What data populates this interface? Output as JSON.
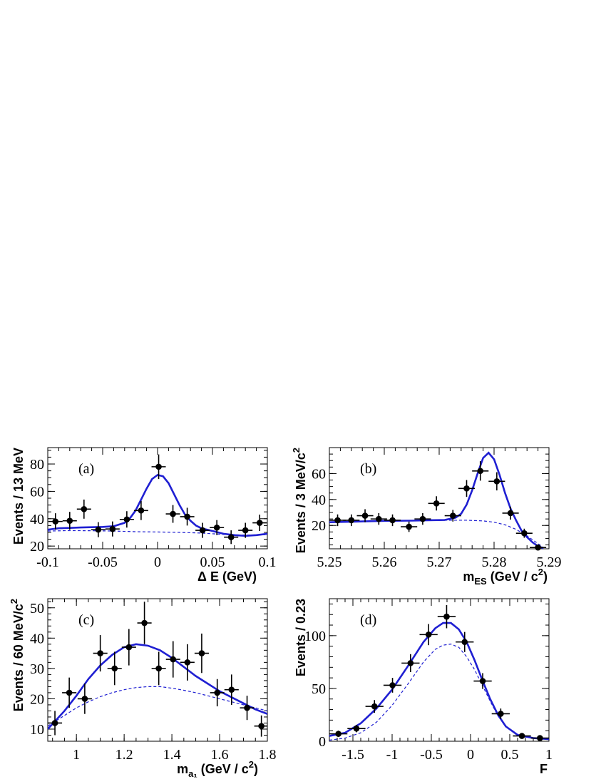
{
  "chart_data": [
    {
      "id": "a",
      "type": "scatter",
      "panel_label": "(a)",
      "xlabel_main": "Δ E (GeV)",
      "xlabel_sub": "",
      "xlabel_tail": "",
      "ylabel_main": "Events / 13 MeV",
      "ylabel_sup": "",
      "xlim": [
        -0.1,
        0.1
      ],
      "ylim": [
        18,
        92
      ],
      "xticks": [
        -0.1,
        -0.05,
        0,
        0.05,
        0.1
      ],
      "xtick_labels": [
        "-0.1",
        "-0.05",
        "0",
        "0.05",
        "0.1"
      ],
      "yticks": [
        20,
        40,
        60,
        80
      ],
      "ytick_labels": [
        "20",
        "40",
        "60",
        "80"
      ],
      "x_minor_step": 0.01,
      "y_minor_step": 5,
      "data": {
        "x": [
          -0.093,
          -0.08,
          -0.067,
          -0.054,
          -0.041,
          -0.028,
          -0.015,
          0.001,
          0.014,
          0.027,
          0.041,
          0.054,
          0.067,
          0.08,
          0.093
        ],
        "y": [
          38,
          38.5,
          47,
          32,
          32.5,
          39.5,
          46,
          78,
          43.5,
          41.5,
          31.5,
          33.5,
          26.5,
          31.5,
          37
        ],
        "yerr": [
          6,
          6.5,
          7,
          5.5,
          5.5,
          6,
          7,
          9,
          6.5,
          6.5,
          5.5,
          5.5,
          5,
          5.5,
          6
        ],
        "xerr": 0.0065
      },
      "series": [
        {
          "name": "",
          "style": "solid",
          "x": [
            -0.1,
            -0.09,
            -0.08,
            -0.07,
            -0.06,
            -0.05,
            -0.04,
            -0.03,
            -0.025,
            -0.02,
            -0.015,
            -0.01,
            -0.005,
            0,
            0.005,
            0.01,
            0.015,
            0.02,
            0.025,
            0.03,
            0.035,
            0.04,
            0.05,
            0.06,
            0.07,
            0.08,
            0.09,
            0.1
          ],
          "y": [
            32,
            33,
            33.3,
            33.6,
            33.8,
            34,
            34.5,
            37,
            40.5,
            46,
            54,
            62,
            69,
            72,
            71,
            66,
            58,
            50,
            43,
            38.5,
            35,
            33,
            31,
            29,
            28,
            27.5,
            28,
            29
          ]
        },
        {
          "name": "",
          "style": "dashed",
          "x": [
            -0.1,
            -0.08,
            -0.06,
            -0.04,
            -0.02,
            0,
            0.02,
            0.04,
            0.06,
            0.08,
            0.1
          ],
          "y": [
            31,
            31.3,
            31.2,
            31,
            30.5,
            30.3,
            30.0,
            29.5,
            28.5,
            28.0,
            28.3
          ]
        }
      ]
    },
    {
      "id": "b",
      "type": "scatter",
      "panel_label": "(b)",
      "xlabel_main": "m",
      "xlabel_sub": "ES",
      "xlabel_tail": " (GeV / c",
      "xlabel_sup": "2",
      "xlabel_end": ")",
      "ylabel_main": "Events / 3 MeV/c",
      "ylabel_sup": "2",
      "xlim": [
        5.25,
        5.29
      ],
      "ylim": [
        2,
        80
      ],
      "xticks": [
        5.25,
        5.26,
        5.27,
        5.28,
        5.29
      ],
      "xtick_labels": [
        "5.25",
        "5.26",
        "5.27",
        "5.28",
        "5.29"
      ],
      "yticks": [
        20,
        40,
        60
      ],
      "ytick_labels": [
        "20",
        "40",
        "60"
      ],
      "x_minor_step": 0.002,
      "y_minor_step": 5,
      "data": {
        "x": [
          5.2515,
          5.254,
          5.2565,
          5.259,
          5.2615,
          5.2645,
          5.267,
          5.2695,
          5.2725,
          5.275,
          5.2775,
          5.2805,
          5.283,
          5.2855,
          5.288
        ],
        "y": [
          24,
          24,
          27.5,
          25,
          24,
          19,
          25,
          37,
          27.5,
          48.5,
          62,
          54,
          29.5,
          14,
          3
        ],
        "yerr": [
          4.5,
          4.5,
          5,
          4.5,
          4.5,
          4,
          4.5,
          5.5,
          4.5,
          6.5,
          7.5,
          7,
          5,
          3.5,
          2
        ],
        "xerr": 0.0015
      },
      "series": [
        {
          "name": "",
          "style": "solid",
          "x": [
            5.25,
            5.255,
            5.26,
            5.265,
            5.268,
            5.271,
            5.273,
            5.274,
            5.275,
            5.276,
            5.277,
            5.278,
            5.279,
            5.28,
            5.281,
            5.282,
            5.283,
            5.284,
            5.285,
            5.286,
            5.287,
            5.288,
            5.289
          ],
          "y": [
            22.5,
            23,
            23.5,
            23.7,
            24,
            24.2,
            26,
            29,
            36,
            47,
            60,
            72,
            76,
            71,
            59,
            45,
            33,
            24,
            16,
            11,
            7,
            4,
            2.5
          ]
        },
        {
          "name": "",
          "style": "dashed",
          "x": [
            5.25,
            5.255,
            5.26,
            5.265,
            5.27,
            5.275,
            5.278,
            5.28,
            5.282,
            5.284,
            5.286,
            5.288,
            5.289
          ],
          "y": [
            22.5,
            23,
            23.5,
            23.8,
            24,
            24,
            23.5,
            22.5,
            20.5,
            17,
            12,
            6,
            3
          ]
        }
      ]
    },
    {
      "id": "c",
      "type": "scatter",
      "panel_label": "(c)",
      "xlabel_main": "m",
      "xlabel_sub": "a₁",
      "xlabel_tail": " (GeV / c",
      "xlabel_sup": "2",
      "xlabel_end": ")",
      "ylabel_main": "Events / 60 MeV/c",
      "ylabel_sup": "2",
      "xlim": [
        0.88,
        1.8
      ],
      "ylim": [
        6,
        53
      ],
      "xticks": [
        1,
        1.2,
        1.4,
        1.6,
        1.8
      ],
      "xtick_labels": [
        "1",
        "1.2",
        "1.4",
        "1.6",
        "1.8"
      ],
      "yticks": [
        10,
        20,
        30,
        40,
        50
      ],
      "ytick_labels": [
        "10",
        "20",
        "30",
        "40",
        "50"
      ],
      "x_minor_step": 0.05,
      "y_minor_step": 2,
      "data": {
        "x": [
          0.91,
          0.97,
          1.035,
          1.1,
          1.16,
          1.22,
          1.285,
          1.345,
          1.405,
          1.465,
          1.525,
          1.59,
          1.65,
          1.715,
          1.775
        ],
        "y": [
          12,
          22,
          20,
          35,
          30,
          37,
          45,
          30,
          33,
          32,
          35,
          22,
          23,
          17,
          11
        ],
        "yerr": [
          4,
          5,
          5,
          6,
          5.5,
          6,
          7,
          5.5,
          6,
          6,
          6.5,
          4.5,
          5,
          4,
          3.5
        ],
        "xerr": 0.03
      },
      "series": [
        {
          "name": "",
          "style": "solid",
          "x": [
            0.88,
            0.95,
            1.0,
            1.05,
            1.1,
            1.15,
            1.2,
            1.25,
            1.3,
            1.35,
            1.4,
            1.45,
            1.5,
            1.55,
            1.6,
            1.65,
            1.7,
            1.75,
            1.8
          ],
          "y": [
            10,
            16,
            21,
            26.5,
            31,
            34.5,
            37,
            38,
            37.5,
            36,
            33.5,
            30.5,
            27.5,
            25,
            22.5,
            20.5,
            18.5,
            16.5,
            15
          ]
        },
        {
          "name": "",
          "style": "dashed",
          "x": [
            0.88,
            0.95,
            1.0,
            1.05,
            1.1,
            1.15,
            1.2,
            1.25,
            1.3,
            1.35,
            1.4,
            1.45,
            1.5,
            1.55,
            1.6,
            1.65,
            1.7,
            1.75,
            1.8
          ],
          "y": [
            11,
            14.5,
            17,
            19,
            20.7,
            22,
            23,
            23.7,
            24,
            24,
            23.5,
            22.8,
            22,
            21,
            20,
            19,
            18,
            17,
            16
          ]
        }
      ]
    },
    {
      "id": "d",
      "type": "scatter",
      "panel_label": "(d)",
      "xlabel_main": "F",
      "xlabel_sub": "",
      "xlabel_tail": "",
      "ylabel_main": "Events / 0.23",
      "ylabel_sup": "",
      "xlim": [
        -1.8,
        1.0
      ],
      "ylim": [
        0,
        135
      ],
      "xticks": [
        -1.5,
        -1,
        -0.5,
        0,
        0.5,
        1
      ],
      "xtick_labels": [
        "-1.5",
        "-1",
        "-0.5",
        "0",
        "0.5",
        "1"
      ],
      "yticks": [
        0,
        50,
        100
      ],
      "ytick_labels": [
        "0",
        "50",
        "100"
      ],
      "x_minor_step": 0.1,
      "y_minor_step": 10,
      "data": {
        "x": [
          -1.685,
          -1.455,
          -1.225,
          -0.995,
          -0.765,
          -0.535,
          -0.305,
          -0.075,
          0.155,
          0.385,
          0.655,
          0.885
        ],
        "y": [
          7,
          12,
          33,
          53,
          74,
          101,
          118,
          94,
          57,
          26,
          5,
          3
        ],
        "yerr": [
          3,
          3.5,
          6,
          7,
          8.5,
          10,
          11,
          9.5,
          7.5,
          5,
          2.5,
          2
        ],
        "xerr": 0.115
      },
      "series": [
        {
          "name": "",
          "style": "solid",
          "x": [
            -1.8,
            -1.6,
            -1.4,
            -1.2,
            -1.0,
            -0.8,
            -0.6,
            -0.45,
            -0.35,
            -0.25,
            -0.15,
            -0.05,
            0.05,
            0.15,
            0.25,
            0.35,
            0.45,
            0.6,
            0.8,
            1.0
          ],
          "y": [
            5,
            8,
            17,
            31,
            49,
            71,
            94,
            107,
            112,
            112,
            106,
            94,
            77,
            58,
            40,
            25,
            14,
            6,
            3,
            2
          ]
        },
        {
          "name": "",
          "style": "dashed",
          "x": [
            -1.8,
            -1.6,
            -1.4,
            -1.2,
            -1.0,
            -0.8,
            -0.6,
            -0.45,
            -0.35,
            -0.25,
            -0.15,
            -0.05,
            0.05,
            0.15,
            0.25,
            0.35,
            0.45,
            0.6,
            0.8,
            1.0
          ],
          "y": [
            1,
            3,
            8,
            18,
            34,
            54,
            75,
            87,
            91,
            92,
            89,
            80,
            68,
            53,
            38,
            24,
            14,
            6,
            3,
            2
          ]
        }
      ]
    }
  ],
  "colors": {
    "fit": "#1f1fd2",
    "data": "#000000",
    "axis": "#000000"
  }
}
